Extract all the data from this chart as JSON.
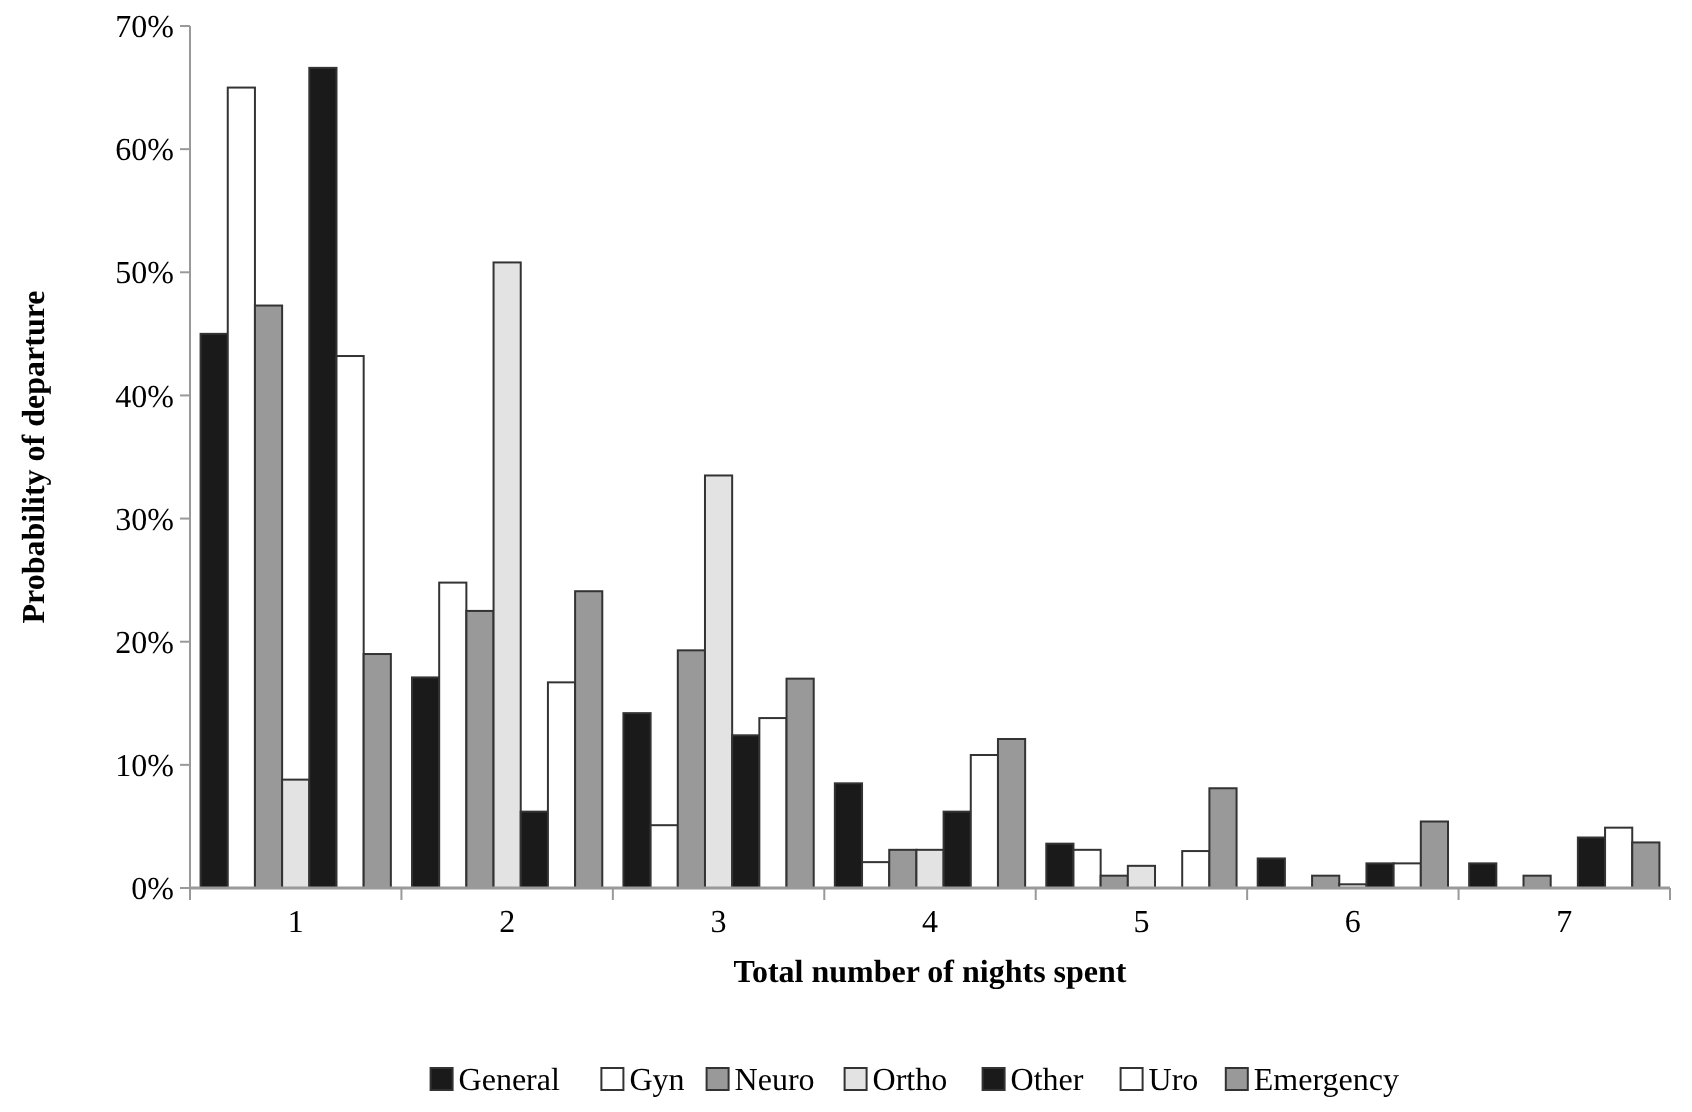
{
  "chart_data": {
    "type": "bar",
    "xlabel": "Total number of nights spent",
    "ylabel": "Probability of departure",
    "categories": [
      "1",
      "2",
      "3",
      "4",
      "5",
      "6",
      "7"
    ],
    "series": [
      {
        "name": "General",
        "color": "#1a1a1a",
        "values": [
          45,
          17.1,
          14.2,
          8.5,
          3.6,
          2.4,
          2.0
        ]
      },
      {
        "name": "Gyn",
        "color": "#ffffff",
        "values": [
          65,
          24.8,
          5.1,
          2.1,
          3.1,
          0,
          0
        ]
      },
      {
        "name": "Neuro",
        "color": "#999999",
        "values": [
          47.3,
          22.5,
          19.3,
          3.1,
          1.0,
          1.0,
          1.0
        ]
      },
      {
        "name": "Ortho",
        "color": "#e3e3e3",
        "values": [
          8.8,
          50.8,
          33.5,
          3.1,
          1.8,
          0.3,
          0
        ]
      },
      {
        "name": "Other",
        "color": "#1a1a1a",
        "values": [
          66.6,
          6.2,
          12.4,
          6.2,
          0,
          2.0,
          4.1
        ]
      },
      {
        "name": "Uro",
        "color": "#ffffff",
        "values": [
          43.2,
          16.7,
          13.8,
          10.8,
          3.0,
          2.0,
          4.9
        ]
      },
      {
        "name": "Emergency",
        "color": "#999999",
        "values": [
          19,
          24.1,
          17,
          12.1,
          8.1,
          5.4,
          3.7
        ]
      }
    ],
    "ylim": [
      0,
      70
    ],
    "yticks": [
      {
        "value": 0,
        "label": "0%"
      },
      {
        "value": 10,
        "label": "10%"
      },
      {
        "value": 20,
        "label": "20%"
      },
      {
        "value": 30,
        "label": "30%"
      },
      {
        "value": 40,
        "label": "40%"
      },
      {
        "value": 50,
        "label": "50%"
      },
      {
        "value": 60,
        "label": "60%"
      },
      {
        "value": 70,
        "label": "70%"
      }
    ],
    "grid": false,
    "legend": "bottom"
  }
}
